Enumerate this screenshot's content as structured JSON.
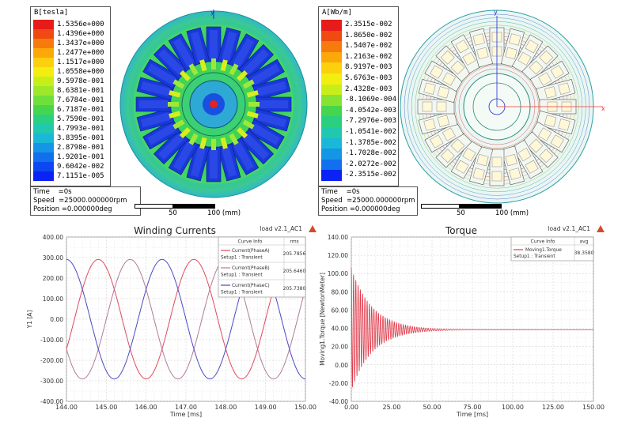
{
  "flux_density_plot": {
    "legend_title": "B[tesla]",
    "legend_values": [
      "1.5356e+000",
      "1.4396e+000",
      "1.3437e+000",
      "1.2477e+000",
      "1.1517e+000",
      "1.0558e+000",
      "9.5978e-001",
      "8.6381e-001",
      "7.6784e-001",
      "6.7187e-001",
      "5.7590e-001",
      "4.7993e-001",
      "3.8395e-001",
      "2.8798e-001",
      "1.9201e-001",
      "9.6042e-002",
      "7.1151e-005"
    ],
    "legend_colors": [
      "#e81b1b",
      "#f04a12",
      "#f77a0c",
      "#fca70a",
      "#fcd00c",
      "#f2ee10",
      "#c8ee1a",
      "#9de82a",
      "#6fe03a",
      "#45d64e",
      "#2ad080",
      "#20c9ad",
      "#1ab8d6",
      "#1495e6",
      "#1070ee",
      "#0c48f2",
      "#0a22f4"
    ],
    "info": {
      "time_label": "Time",
      "time_value": "=0s",
      "speed_label": "Speed",
      "speed_value": "=25000.000000rpm",
      "position_label": "Position",
      "position_value": "=0.000000deg"
    },
    "scale": {
      "mid": "50",
      "end": "100 (mm)"
    }
  },
  "vector_potential_plot": {
    "legend_title": "A[Wb/m]",
    "legend_values": [
      "2.3515e-002",
      "1.8650e-002",
      "1.5407e-002",
      "1.2163e-002",
      "8.9197e-003",
      "5.6763e-003",
      "2.4328e-003",
      "-8.1069e-004",
      "-4.0542e-003",
      "-7.2976e-003",
      "-1.0541e-002",
      "-1.3785e-002",
      "-1.7028e-002",
      "-2.0272e-002",
      "-2.3515e-002"
    ],
    "legend_colors": [
      "#e81b1b",
      "#f04a12",
      "#f77a0c",
      "#fca70a",
      "#fcd00c",
      "#f2ee10",
      "#c8ee1a",
      "#86e332",
      "#45d64e",
      "#2ad080",
      "#20c9ad",
      "#1ab8d6",
      "#1495e6",
      "#1070ee",
      "#0a22f4"
    ],
    "info": {
      "time_label": "Time",
      "time_value": "=0s",
      "speed_label": "Speed",
      "speed_value": "=25000.000000rpm",
      "position_label": "Position",
      "position_value": "=0.000000deg"
    },
    "scale": {
      "mid": "50",
      "end": "100 (mm)"
    }
  },
  "chart_data": [
    {
      "type": "line",
      "title": "Winding Currents",
      "tag": "load v2.1_AC1",
      "xlabel": "Time [ms]",
      "ylabel": "Y1 [A]",
      "xlim": [
        144.0,
        150.0
      ],
      "ylim": [
        -400,
        400
      ],
      "xticks": [
        "144.00",
        "145.00",
        "146.00",
        "147.00",
        "148.00",
        "149.00",
        "150.00"
      ],
      "yticks": [
        "400.00",
        "300.00",
        "200.00",
        "100.00",
        "0.00",
        "-100.00",
        "-200.00",
        "-300.00",
        "-400.00"
      ],
      "grid": true,
      "legend": {
        "header_info": "Curve Info",
        "header_value": "rms",
        "placement": "top-right"
      },
      "series": [
        {
          "name": "Current(PhaseA)",
          "setup": "Setup1 : Transient",
          "rms": "205.7856",
          "color": "#e0495a",
          "amplitude": 291,
          "period_ms": 2.4,
          "peak_at_ms": 144.8
        },
        {
          "name": "Current(PhaseB)",
          "setup": "Setup1 : Transient",
          "rms": "205.6460",
          "color": "#b07a9a",
          "amplitude": 291,
          "period_ms": 2.4,
          "peak_at_ms": 145.6
        },
        {
          "name": "Current(PhaseC)",
          "setup": "Setup1 : Transient",
          "rms": "205.7380",
          "color": "#4a4ac4",
          "amplitude": 291,
          "period_ms": 2.4,
          "peak_at_ms": 146.4
        }
      ]
    },
    {
      "type": "line",
      "title": "Torque",
      "tag": "load v2.1_AC1",
      "xlabel": "Time [ms]",
      "ylabel": "Moving1.Torque [NewtonMeter]",
      "xlim": [
        0,
        150
      ],
      "ylim": [
        -40,
        140
      ],
      "xticks": [
        "0.00",
        "25.00",
        "50.00",
        "75.00",
        "100.00",
        "125.00",
        "150.00"
      ],
      "yticks": [
        "140.00",
        "120.00",
        "100.00",
        "80.00",
        "60.00",
        "40.00",
        "20.00",
        "0.00",
        "-20.00",
        "-40.00"
      ],
      "grid": true,
      "legend": {
        "header_info": "Curve Info",
        "header_value": "avg",
        "placement": "top-right"
      },
      "series": [
        {
          "name": "Moving1.Torque",
          "setup": "Setup1 : Transient",
          "avg": "38.3580",
          "color": "#e03a4a",
          "steady": 38.4,
          "initial_peak": 106,
          "initial_trough": -28,
          "decay_ms": 13,
          "oscillation_period_ms": 1.4
        }
      ]
    }
  ]
}
